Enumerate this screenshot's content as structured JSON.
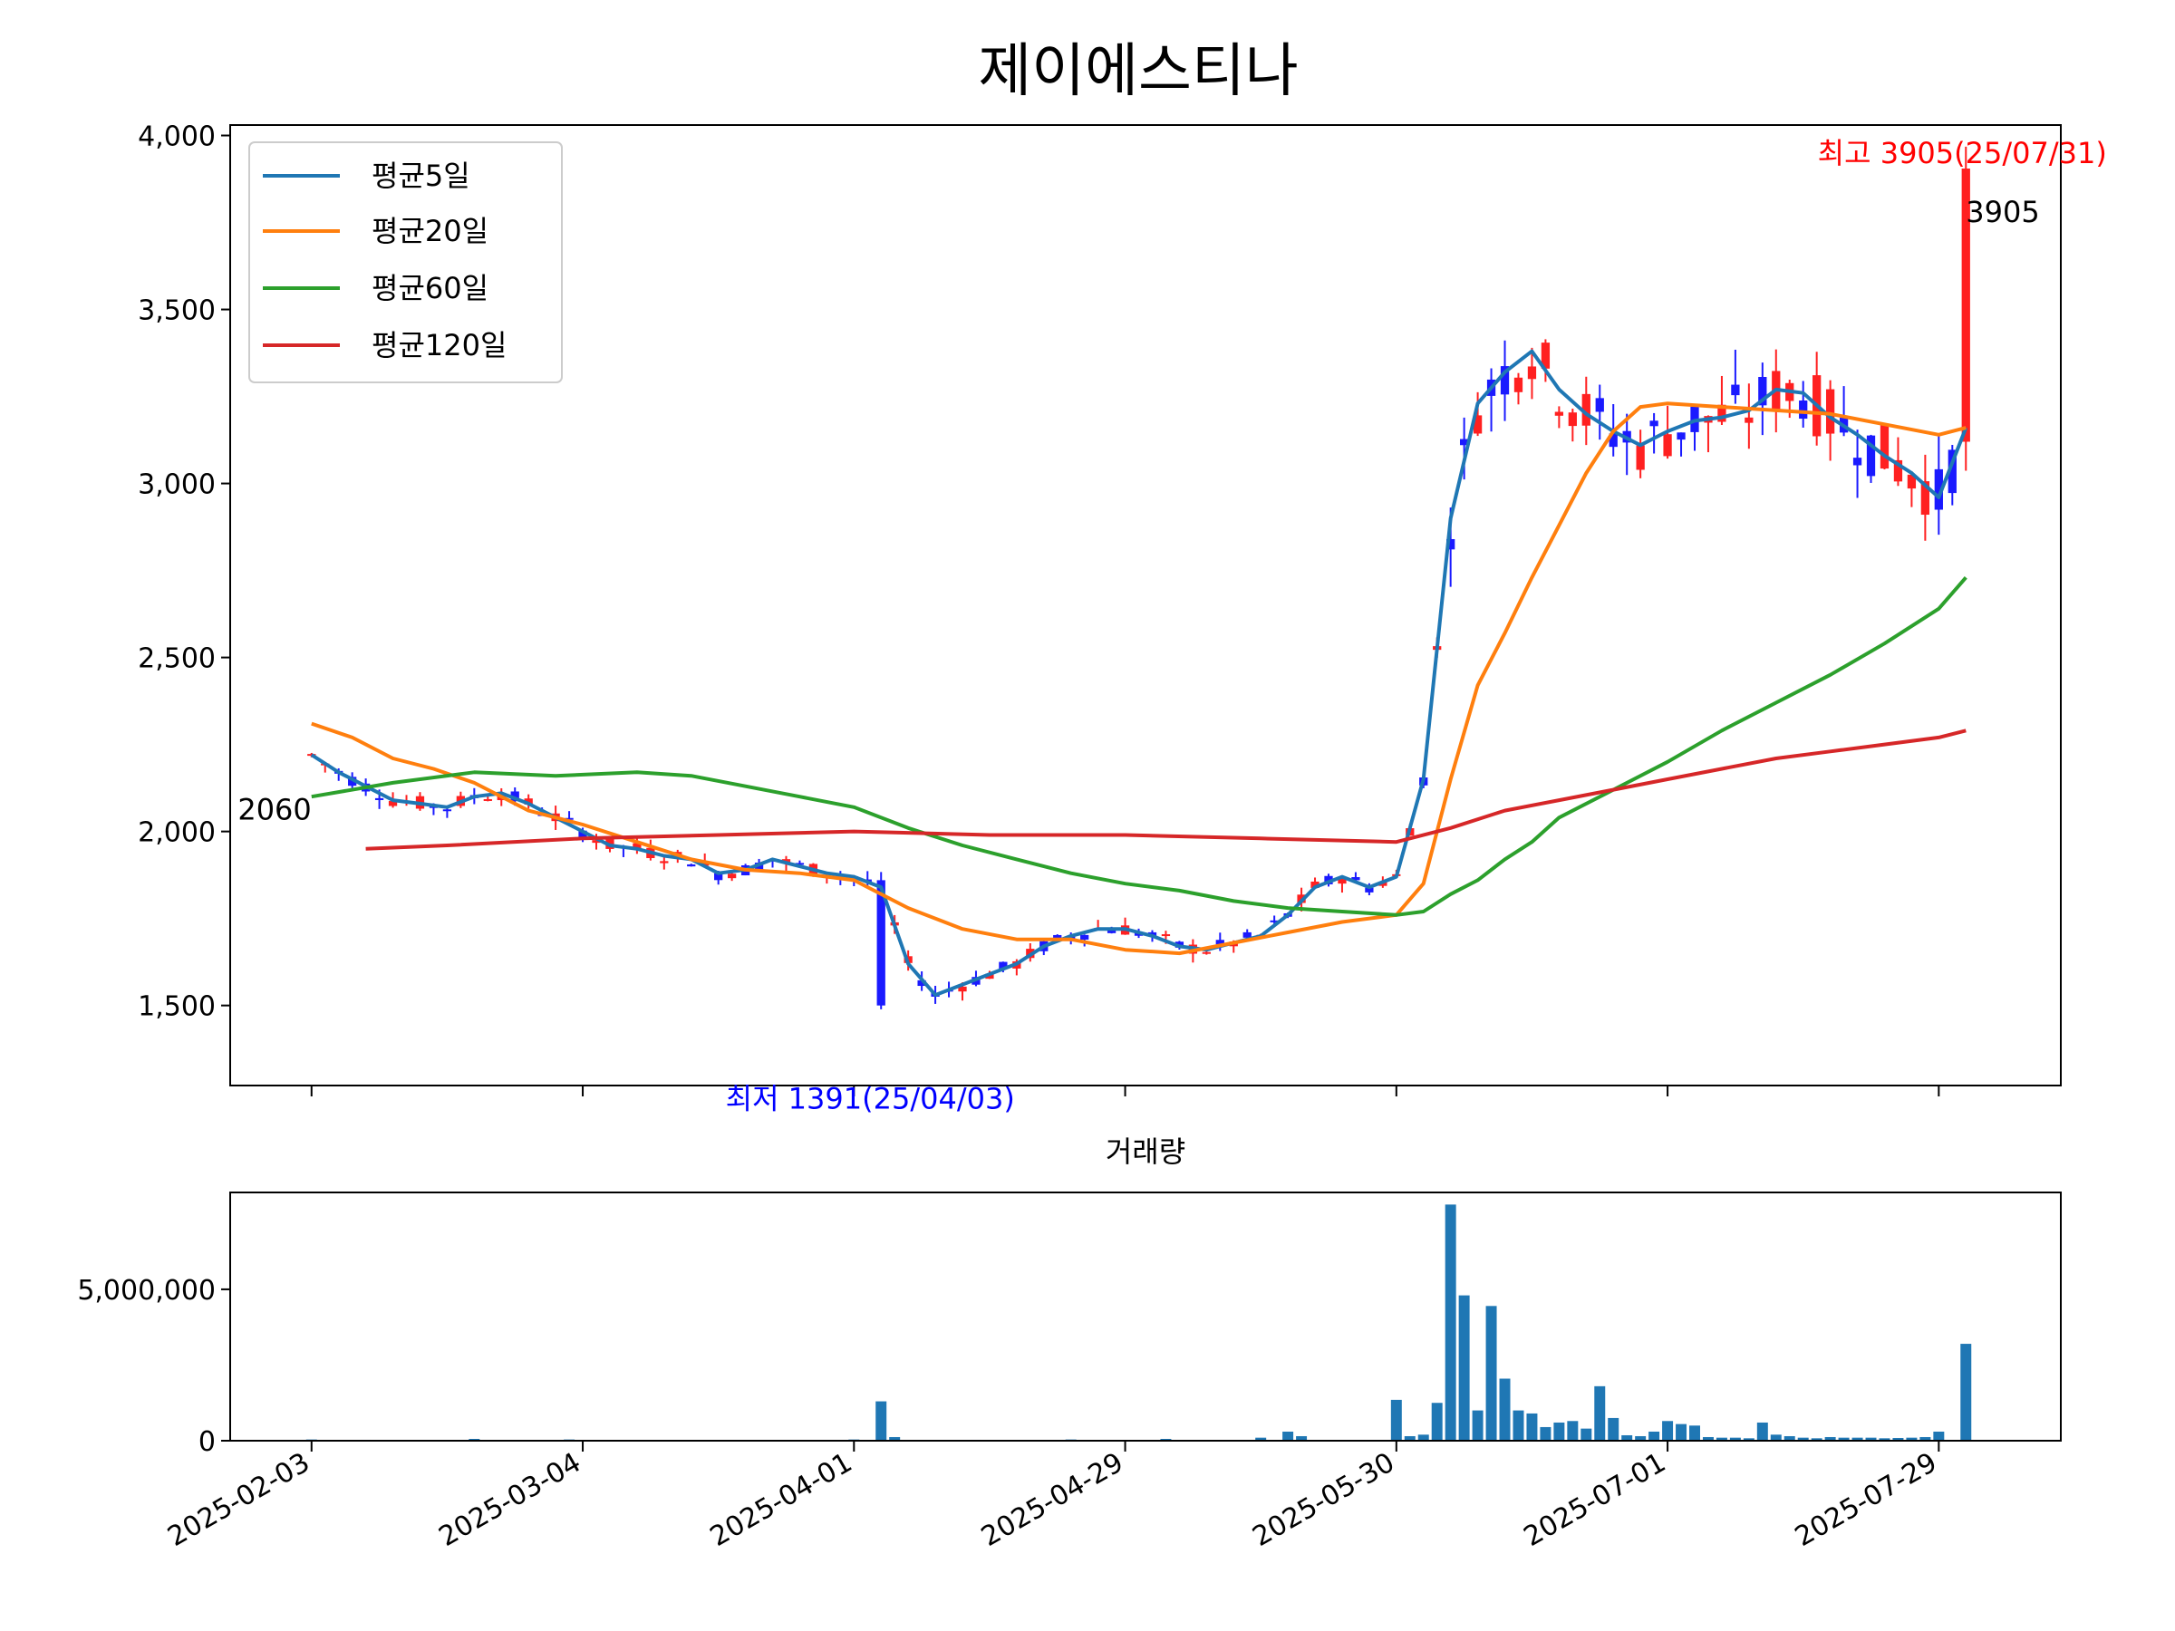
{
  "title": "제이에스티나",
  "chart_data": [
    {
      "type": "line",
      "subtype": "candlestick-with-moving-averages",
      "title": "제이에스티나",
      "ylim": [
        1270,
        4030
      ],
      "yticks": [
        1500,
        2000,
        2500,
        3000,
        3500,
        4000
      ],
      "ytick_labels": [
        "1,500",
        "2,000",
        "2,500",
        "3,000",
        "3,500",
        "4,000"
      ],
      "xtick_labels": [
        "2025-02-03",
        "2025-03-04",
        "2025-04-01",
        "2025-04-29",
        "2025-05-30",
        "2025-07-01",
        "2025-07-29"
      ],
      "xtick_positions": [
        0,
        20,
        40,
        60,
        80,
        100,
        120
      ],
      "x_range": [
        -6,
        129
      ],
      "grid": false,
      "legend_position": "upper-left",
      "colors": {
        "up": "#ff2020",
        "down": "#1a1aff",
        "ma5": "#1f77b4",
        "ma20": "#ff7f0e",
        "ma60": "#2ca02c",
        "ma120": "#d62728"
      },
      "series": [
        {
          "name": "평균5일",
          "values": [
            [
              0,
              2220
            ],
            [
              2,
              2170
            ],
            [
              4,
              2130
            ],
            [
              6,
              2090
            ],
            [
              8,
              2080
            ],
            [
              10,
              2070
            ],
            [
              12,
              2100
            ],
            [
              14,
              2110
            ],
            [
              16,
              2080
            ],
            [
              18,
              2040
            ],
            [
              20,
              2000
            ],
            [
              22,
              1960
            ],
            [
              24,
              1950
            ],
            [
              26,
              1930
            ],
            [
              28,
              1920
            ],
            [
              30,
              1880
            ],
            [
              32,
              1890
            ],
            [
              34,
              1920
            ],
            [
              36,
              1900
            ],
            [
              38,
              1880
            ],
            [
              40,
              1870
            ],
            [
              42,
              1840
            ],
            [
              44,
              1620
            ],
            [
              46,
              1530
            ],
            [
              48,
              1560
            ],
            [
              50,
              1590
            ],
            [
              52,
              1620
            ],
            [
              54,
              1670
            ],
            [
              56,
              1700
            ],
            [
              58,
              1720
            ],
            [
              60,
              1720
            ],
            [
              62,
              1700
            ],
            [
              64,
              1670
            ],
            [
              66,
              1660
            ],
            [
              68,
              1680
            ],
            [
              70,
              1700
            ],
            [
              72,
              1760
            ],
            [
              74,
              1840
            ],
            [
              76,
              1870
            ],
            [
              78,
              1840
            ],
            [
              80,
              1870
            ],
            [
              82,
              2150
            ],
            [
              84,
              2900
            ],
            [
              86,
              3230
            ],
            [
              88,
              3320
            ],
            [
              90,
              3380
            ],
            [
              92,
              3270
            ],
            [
              94,
              3200
            ],
            [
              96,
              3150
            ],
            [
              98,
              3110
            ],
            [
              100,
              3150
            ],
            [
              102,
              3180
            ],
            [
              104,
              3190
            ],
            [
              106,
              3210
            ],
            [
              108,
              3270
            ],
            [
              110,
              3260
            ],
            [
              112,
              3190
            ],
            [
              114,
              3140
            ],
            [
              116,
              3080
            ],
            [
              118,
              3030
            ],
            [
              120,
              2960
            ],
            [
              122,
              3160
            ]
          ]
        },
        {
          "name": "평균20일",
          "values": [
            [
              0,
              2310
            ],
            [
              3,
              2270
            ],
            [
              6,
              2210
            ],
            [
              9,
              2180
            ],
            [
              12,
              2140
            ],
            [
              16,
              2060
            ],
            [
              20,
              2020
            ],
            [
              24,
              1970
            ],
            [
              28,
              1920
            ],
            [
              32,
              1890
            ],
            [
              36,
              1880
            ],
            [
              40,
              1860
            ],
            [
              44,
              1780
            ],
            [
              48,
              1720
            ],
            [
              52,
              1690
            ],
            [
              56,
              1690
            ],
            [
              60,
              1660
            ],
            [
              64,
              1650
            ],
            [
              68,
              1680
            ],
            [
              72,
              1710
            ],
            [
              76,
              1740
            ],
            [
              80,
              1760
            ],
            [
              82,
              1850
            ],
            [
              84,
              2150
            ],
            [
              86,
              2420
            ],
            [
              88,
              2570
            ],
            [
              90,
              2730
            ],
            [
              92,
              2880
            ],
            [
              94,
              3030
            ],
            [
              96,
              3150
            ],
            [
              98,
              3220
            ],
            [
              100,
              3230
            ],
            [
              104,
              3220
            ],
            [
              108,
              3210
            ],
            [
              112,
              3200
            ],
            [
              116,
              3170
            ],
            [
              120,
              3140
            ],
            [
              122,
              3160
            ]
          ]
        },
        {
          "name": "평균60일",
          "values": [
            [
              0,
              2100
            ],
            [
              6,
              2140
            ],
            [
              12,
              2170
            ],
            [
              18,
              2160
            ],
            [
              24,
              2170
            ],
            [
              28,
              2160
            ],
            [
              32,
              2130
            ],
            [
              36,
              2100
            ],
            [
              40,
              2070
            ],
            [
              44,
              2010
            ],
            [
              48,
              1960
            ],
            [
              52,
              1920
            ],
            [
              56,
              1880
            ],
            [
              60,
              1850
            ],
            [
              64,
              1830
            ],
            [
              68,
              1800
            ],
            [
              72,
              1780
            ],
            [
              76,
              1770
            ],
            [
              80,
              1760
            ],
            [
              82,
              1770
            ],
            [
              84,
              1820
            ],
            [
              86,
              1860
            ],
            [
              88,
              1920
            ],
            [
              90,
              1970
            ],
            [
              92,
              2040
            ],
            [
              96,
              2120
            ],
            [
              100,
              2200
            ],
            [
              104,
              2290
            ],
            [
              108,
              2370
            ],
            [
              112,
              2450
            ],
            [
              116,
              2540
            ],
            [
              120,
              2640
            ],
            [
              122,
              2730
            ]
          ]
        },
        {
          "name": "평균120일",
          "values": [
            [
              4,
              1950
            ],
            [
              10,
              1960
            ],
            [
              20,
              1980
            ],
            [
              30,
              1990
            ],
            [
              40,
              2000
            ],
            [
              50,
              1990
            ],
            [
              60,
              1990
            ],
            [
              70,
              1980
            ],
            [
              80,
              1970
            ],
            [
              84,
              2010
            ],
            [
              88,
              2060
            ],
            [
              92,
              2090
            ],
            [
              96,
              2120
            ],
            [
              100,
              2150
            ],
            [
              104,
              2180
            ],
            [
              108,
              2210
            ],
            [
              112,
              2230
            ],
            [
              116,
              2250
            ],
            [
              120,
              2270
            ],
            [
              122,
              2290
            ]
          ]
        }
      ],
      "annotations": [
        {
          "text": "최고 3905(25/07/31)",
          "x": 122,
          "y": 3905,
          "color": "#ff0000"
        },
        {
          "text": "3905",
          "x": 122,
          "y": 3840,
          "color": "#000000"
        },
        {
          "text": "최저 1391(25/04/03)",
          "x": 42,
          "y": 1391,
          "color": "#0000ff"
        },
        {
          "text": "2060",
          "x": 0,
          "y": 2060,
          "color": "#000000"
        }
      ]
    },
    {
      "type": "bar",
      "title": "거래량",
      "ylim": [
        0,
        8200000
      ],
      "yticks": [
        0,
        5000000
      ],
      "ytick_labels": [
        "0",
        "5,000,000"
      ],
      "xtick_labels": [
        "2025-02-03",
        "2025-03-04",
        "2025-04-01",
        "2025-04-29",
        "2025-05-30",
        "2025-07-01",
        "2025-07-29"
      ],
      "x": [
        0,
        4,
        12,
        19,
        40,
        42,
        43,
        49,
        56,
        63,
        70,
        72,
        73,
        80,
        81,
        82,
        83,
        84,
        85,
        86,
        87,
        88,
        89,
        90,
        91,
        92,
        93,
        94,
        95,
        96,
        97,
        98,
        99,
        100,
        101,
        102,
        103,
        104,
        105,
        106,
        107,
        108,
        109,
        110,
        111,
        112,
        113,
        114,
        115,
        116,
        117,
        118,
        119,
        120,
        122
      ],
      "values": [
        40000,
        30000,
        60000,
        40000,
        40000,
        1300000,
        120000,
        30000,
        40000,
        60000,
        100000,
        300000,
        150000,
        1350000,
        150000,
        200000,
        1250000,
        7800000,
        4800000,
        1000000,
        4450000,
        2050000,
        1000000,
        900000,
        450000,
        600000,
        650000,
        400000,
        1800000,
        750000,
        180000,
        150000,
        300000,
        650000,
        550000,
        500000,
        120000,
        100000,
        100000,
        80000,
        600000,
        200000,
        150000,
        100000,
        80000,
        120000,
        100000,
        100000,
        100000,
        80000,
        90000,
        100000,
        120000,
        300000,
        3200000
      ]
    }
  ]
}
